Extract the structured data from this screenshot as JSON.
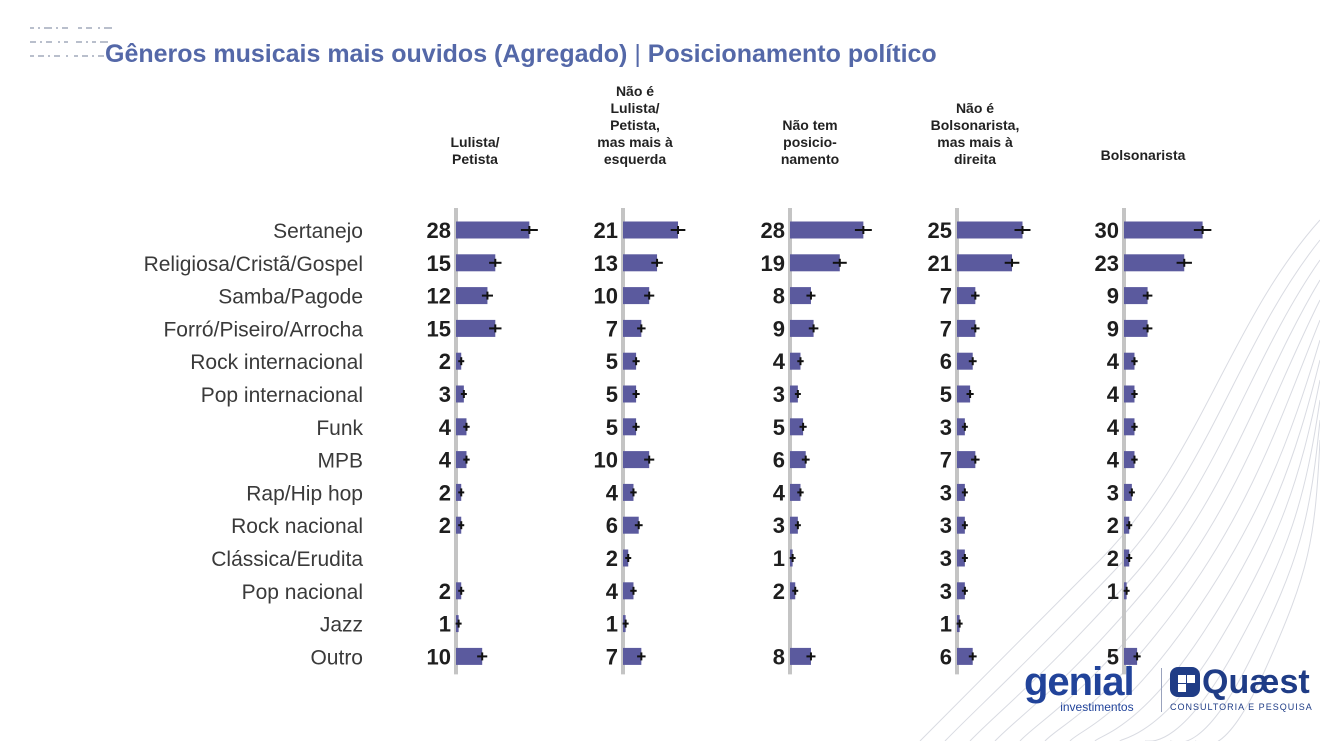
{
  "title": "Gêneros musicais mais ouvidos (Agregado)",
  "title_separator": "|",
  "subtitle": "Posicionamento político",
  "brands": {
    "genial": "genial",
    "genial_sub": "investimentos",
    "quaest": "Quæst",
    "quaest_sub": "CONSULTORIA E PESQUISA"
  },
  "colors": {
    "bar": "#5b5a9e",
    "axis": "#c4c4c4",
    "title": "#5468a8",
    "error": "#111111"
  },
  "chart_data": {
    "type": "bar",
    "orientation": "horizontal",
    "categories": [
      "Sertanejo",
      "Religiosa/Cristã/Gospel",
      "Samba/Pagode",
      "Forró/Piseiro/Arrocha",
      "Rock internacional",
      "Pop internacional",
      "Funk",
      "MPB",
      "Rap/Hip hop",
      "Rock nacional",
      "Clássica/Erudita",
      "Pop nacional",
      "Jazz",
      "Outro"
    ],
    "series": [
      {
        "header_lines": [
          "Lulista/",
          "Petista"
        ],
        "values": [
          28,
          15,
          12,
          15,
          2,
          3,
          4,
          4,
          2,
          2,
          null,
          2,
          1,
          10
        ]
      },
      {
        "header_lines": [
          "Não é",
          "Lulista/",
          "Petista,",
          "mas mais à",
          "esquerda"
        ],
        "values": [
          21,
          13,
          10,
          7,
          5,
          5,
          5,
          10,
          4,
          6,
          2,
          4,
          1,
          7
        ]
      },
      {
        "header_lines": [
          "Não tem",
          "posicio-",
          "namento"
        ],
        "values": [
          28,
          19,
          8,
          9,
          4,
          3,
          5,
          6,
          4,
          3,
          1,
          2,
          null,
          8
        ]
      },
      {
        "header_lines": [
          "Não é",
          "Bolsonarista,",
          "mas mais à",
          "direita"
        ],
        "values": [
          25,
          21,
          7,
          7,
          6,
          5,
          3,
          7,
          3,
          3,
          3,
          3,
          1,
          6
        ]
      },
      {
        "header_lines": [
          "Bolsonarista"
        ],
        "values": [
          30,
          23,
          9,
          9,
          4,
          4,
          4,
          4,
          3,
          2,
          2,
          1,
          null,
          5
        ]
      }
    ],
    "error_bars": true,
    "grid": false,
    "legend": "none"
  }
}
